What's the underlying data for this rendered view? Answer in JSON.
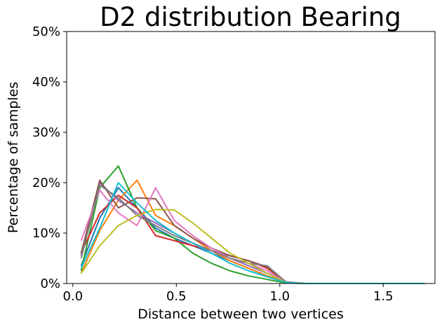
{
  "chart_data": {
    "type": "line",
    "title": "D2 distribution Bearing",
    "xlabel": "Distance between two vertices",
    "ylabel": "Percentage of samples",
    "xlim": [
      -0.03,
      1.75
    ],
    "ylim": [
      0,
      50
    ],
    "x_ticks": [
      0.0,
      0.5,
      1.0,
      1.5
    ],
    "x_tick_labels": [
      "0.0",
      "0.5",
      "1.0",
      "1.5"
    ],
    "y_ticks": [
      0,
      10,
      20,
      30,
      40,
      50
    ],
    "y_tick_labels": [
      "0%",
      "10%",
      "20%",
      "30%",
      "40%",
      "50%"
    ],
    "grid": false,
    "legend": "none",
    "x": [
      0.04,
      0.13,
      0.22,
      0.31,
      0.4,
      0.49,
      0.58,
      0.67,
      0.76,
      0.85,
      0.94,
      1.03,
      1.12,
      1.21,
      1.3,
      1.39,
      1.48,
      1.57,
      1.66,
      1.7
    ],
    "series": [
      {
        "color": "#1f77b4",
        "values": [
          3.5,
          13.0,
          19.0,
          15.0,
          11.0,
          9.0,
          7.5,
          6.0,
          4.5,
          3.0,
          1.5,
          0.3,
          0,
          0,
          0,
          0,
          0,
          0,
          0,
          0
        ]
      },
      {
        "color": "#ff7f0e",
        "values": [
          2.0,
          10.5,
          16.5,
          20.5,
          13.5,
          11.5,
          9.0,
          6.5,
          4.5,
          3.0,
          1.5,
          0.2,
          0,
          0,
          0,
          0,
          0,
          0,
          0,
          0
        ]
      },
      {
        "color": "#2ca02c",
        "values": [
          2.5,
          19.0,
          23.3,
          15.0,
          10.5,
          9.0,
          6.0,
          4.0,
          2.5,
          1.5,
          0.8,
          0.1,
          0,
          0,
          0,
          0,
          0,
          0,
          0,
          0
        ]
      },
      {
        "color": "#d62728",
        "values": [
          6.0,
          14.0,
          17.5,
          15.0,
          9.5,
          8.5,
          7.5,
          6.5,
          5.5,
          4.5,
          3.0,
          0.3,
          0,
          0,
          0,
          0,
          0,
          0,
          0,
          0
        ]
      },
      {
        "color": "#9467bd",
        "values": [
          5.5,
          20.0,
          16.5,
          14.0,
          12.0,
          10.0,
          8.0,
          6.5,
          5.0,
          3.5,
          2.0,
          0.3,
          0,
          0,
          0,
          0,
          0,
          0,
          0,
          0
        ]
      },
      {
        "color": "#8c564b",
        "values": [
          6.0,
          20.5,
          15.0,
          17.0,
          16.8,
          11.5,
          9.0,
          7.0,
          5.5,
          4.5,
          3.3,
          0.3,
          0,
          0,
          0,
          0,
          0,
          0,
          0,
          0
        ]
      },
      {
        "color": "#e377c2",
        "values": [
          8.5,
          18.5,
          14.0,
          11.5,
          19.0,
          12.5,
          9.5,
          7.0,
          5.0,
          4.0,
          2.5,
          0.2,
          0,
          0,
          0,
          0,
          0,
          0,
          0,
          0
        ]
      },
      {
        "color": "#7f7f7f",
        "values": [
          5.0,
          19.5,
          17.0,
          13.5,
          11.5,
          9.5,
          8.0,
          6.5,
          5.0,
          4.0,
          3.5,
          0.3,
          0,
          0,
          0,
          0,
          0,
          0,
          0,
          0
        ]
      },
      {
        "color": "#bcbd22",
        "values": [
          2.0,
          7.5,
          11.5,
          13.5,
          14.7,
          14.6,
          12.0,
          9.0,
          6.0,
          4.0,
          2.0,
          0.2,
          0,
          0,
          0,
          0,
          0,
          0,
          0,
          0
        ]
      },
      {
        "color": "#17becf",
        "values": [
          3.0,
          11.0,
          20.0,
          16.0,
          12.5,
          10.0,
          8.0,
          6.0,
          4.0,
          2.5,
          1.3,
          0.2,
          0,
          0,
          0,
          0,
          0,
          0,
          0,
          0
        ]
      }
    ]
  }
}
